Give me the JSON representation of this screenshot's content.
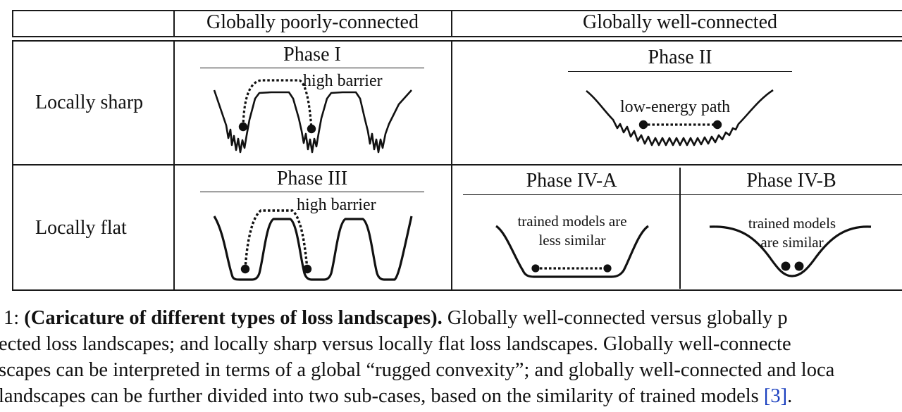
{
  "table": {
    "col_headers": [
      "Globally poorly-connected",
      "Globally well-connected"
    ],
    "row_headers": [
      "Locally sharp",
      "Locally flat"
    ],
    "phases": {
      "phase1": {
        "title": "Phase I",
        "annotation": "high barrier"
      },
      "phase2": {
        "title": "Phase II",
        "annotation": "low-energy path"
      },
      "phase3": {
        "title": "Phase III",
        "annotation": "high barrier"
      },
      "phase4a": {
        "title": "Phase IV-A",
        "annotation_lines": [
          "trained models are",
          "less similar"
        ]
      },
      "phase4b": {
        "title": "Phase IV-B",
        "annotation_lines": [
          "trained models",
          "are similar"
        ]
      }
    }
  },
  "caption": {
    "line1_prefix": "1: ",
    "line1_bold": "(Caricature of different types of loss landscapes).",
    "line1_rest": " Globally well-connected versus globally p",
    "line2": "ected loss landscapes; and locally sharp versus locally flat loss landscapes. Globally well-connecte",
    "line3": "scapes can be interpreted in terms of a global “rugged convexity”; and globally well-connected and loca",
    "line4_before": " landscapes can be further divided into two sub-cases, based on the similarity of trained models ",
    "line4_ref": "[3]",
    "line4_after": "."
  }
}
